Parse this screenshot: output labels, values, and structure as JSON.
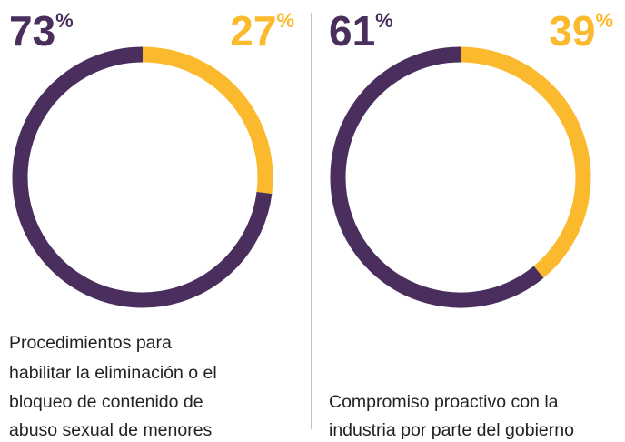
{
  "chart_data": [
    {
      "type": "donut",
      "values": [
        73,
        27
      ],
      "unit": "%",
      "colors": [
        "#4a2f5e",
        "#fbb92e"
      ],
      "caption": [
        "Procedimientos para",
        "habilitar la eliminación o el",
        "bloqueo de contenido de",
        "abuso sexual de menores"
      ]
    },
    {
      "type": "donut",
      "values": [
        61,
        39
      ],
      "unit": "%",
      "colors": [
        "#4a2f5e",
        "#fbb92e"
      ],
      "caption": [
        "Compromiso proactivo con la",
        "industria por parte del gobierno"
      ]
    }
  ]
}
